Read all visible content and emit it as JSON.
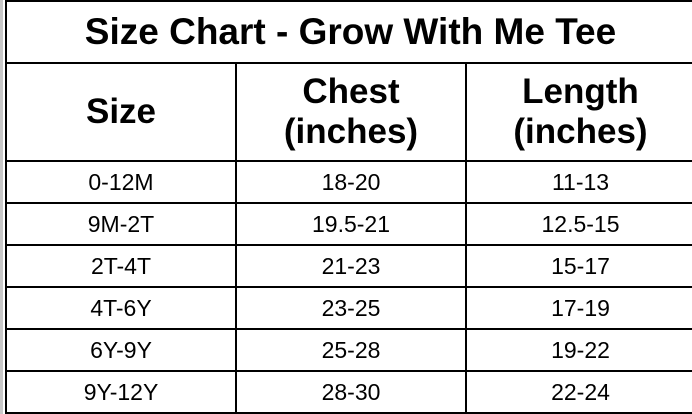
{
  "title": "Size Chart - Grow With Me Tee",
  "headers": [
    {
      "line1": "Size",
      "line2": ""
    },
    {
      "line1": "Chest",
      "line2": "(inches)"
    },
    {
      "line1": "Length",
      "line2": "(inches)"
    }
  ],
  "rows": [
    [
      "0-12M",
      "18-20",
      "11-13"
    ],
    [
      "9M-2T",
      "19.5-21",
      "12.5-15"
    ],
    [
      "2T-4T",
      "21-23",
      "15-17"
    ],
    [
      "4T-6Y",
      "23-25",
      "17-19"
    ],
    [
      "6Y-9Y",
      "25-28",
      "19-22"
    ],
    [
      "9Y-12Y",
      "28-30",
      "22-24"
    ]
  ]
}
